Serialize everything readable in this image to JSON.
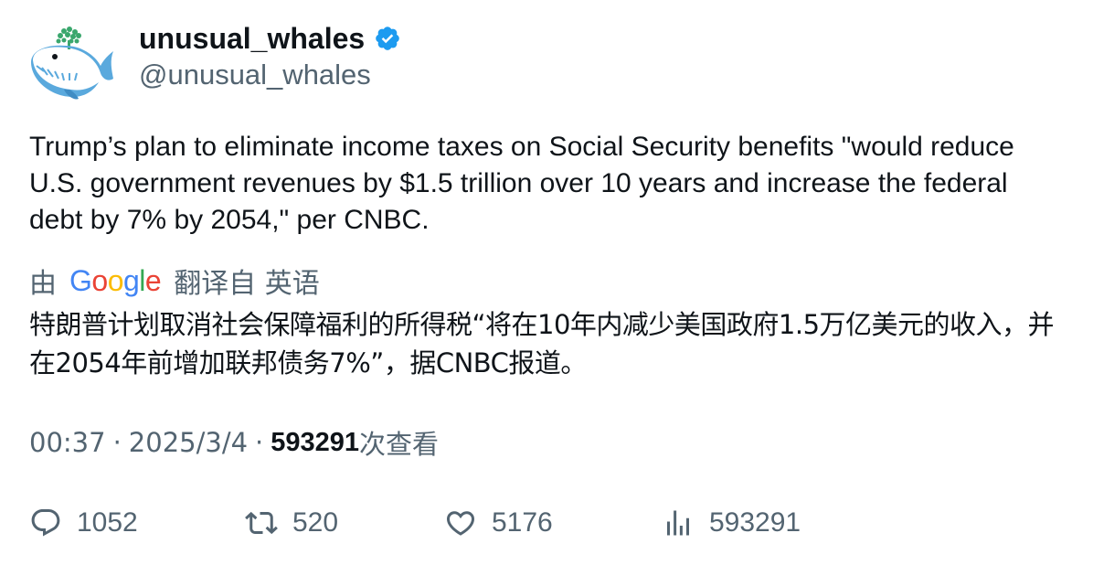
{
  "tweet": {
    "display_name": "unusual_whales",
    "handle": "@unusual_whales",
    "verified_icon": "verified-badge-icon",
    "avatar_icon": "whale-avatar-icon",
    "text": "Trump’s plan to eliminate income taxes on Social Security benefits \"would reduce U.S. government revenues by $1.5 trillion over 10 years and increase the federal debt by 7% by 2054,\" per CNBC.",
    "translation": {
      "by_label": "由",
      "provider": "Google",
      "translated_from": "翻译自 英语",
      "text": "特朗普计划取消社会保障福利的所得税“将在10年内减少美国政府1.5万亿美元的收入，并在2054年前增加联邦债务7%”，据CNBC报道。"
    },
    "meta": {
      "time": "00:37",
      "separator": "·",
      "date": "2025/3/4",
      "views_count": "593291",
      "views_label": "次查看"
    },
    "actions": {
      "replies": "1052",
      "retweets": "520",
      "likes": "5176",
      "views": "593291"
    },
    "colors": {
      "text": "#0f1419",
      "secondary": "#536471",
      "verified": "#1d9bf0"
    }
  }
}
